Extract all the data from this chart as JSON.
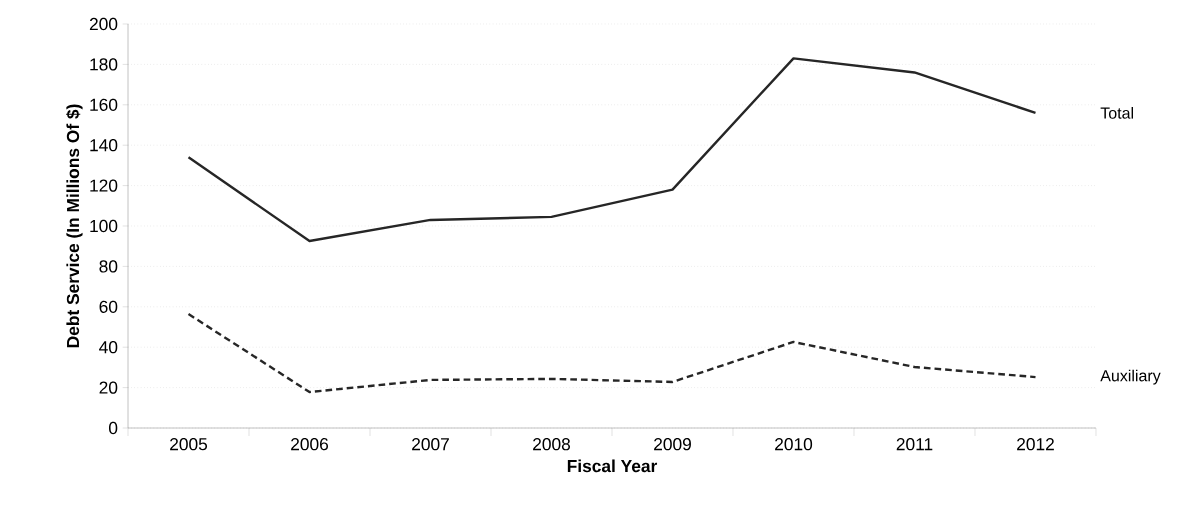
{
  "chart_data": {
    "type": "line",
    "xlabel": "Fiscal Year",
    "ylabel": "Debt Service (In Millions Of $)",
    "categories": [
      "2005",
      "2006",
      "2007",
      "2008",
      "2009",
      "2010",
      "2011",
      "2012"
    ],
    "series": [
      {
        "name": "Total",
        "color": "#262626",
        "line_style": "solid",
        "values": [
          134,
          92.6,
          103,
          104.5,
          118,
          183,
          176,
          156
        ]
      },
      {
        "name": "Auxiliary",
        "color": "#262626",
        "line_style": "dashed",
        "values": [
          56.4,
          17.8,
          23.8,
          24.3,
          22.8,
          42.6,
          30.2,
          25.2
        ]
      }
    ],
    "ylim": [
      0,
      200
    ],
    "yticks": [
      0,
      20,
      40,
      60,
      80,
      100,
      120,
      140,
      160,
      180,
      200
    ],
    "grid": "y",
    "marker": "none"
  }
}
